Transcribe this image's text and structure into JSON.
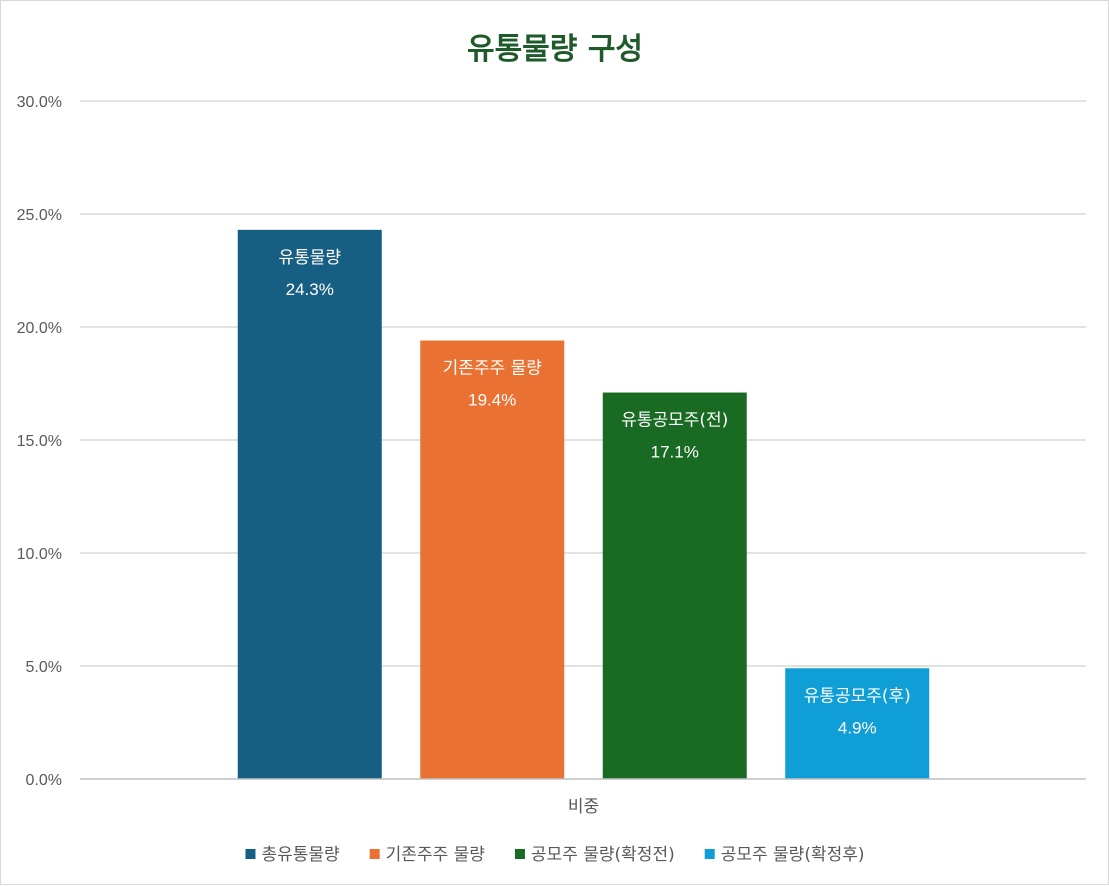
{
  "chart_data": {
    "type": "bar",
    "title": "유통물량 구성",
    "categories": [
      "비중"
    ],
    "series": [
      {
        "name": "총유통물량",
        "label": "유통물량",
        "value": 24.3,
        "value_label": "24.3%",
        "color": "#175f82"
      },
      {
        "name": "기존주주 물량",
        "label": "기존주주 물량",
        "value": 19.4,
        "value_label": "19.4%",
        "color": "#e97132"
      },
      {
        "name": "공모주 물량(확정전)",
        "label": "유통공모주(전)",
        "value": 17.1,
        "value_label": "17.1%",
        "color": "#196b24"
      },
      {
        "name": "공모주 물량(확정후)",
        "label": "유통공모주(후)",
        "value": 4.9,
        "value_label": "4.9%",
        "color": "#0f9ed5"
      }
    ],
    "ylim": [
      0,
      30
    ],
    "yticks": [
      {
        "value": 0,
        "label": "0.0%"
      },
      {
        "value": 5,
        "label": "5.0%"
      },
      {
        "value": 10,
        "label": "10.0%"
      },
      {
        "value": 15,
        "label": "15.0%"
      },
      {
        "value": 20,
        "label": "20.0%"
      },
      {
        "value": 25,
        "label": "25.0%"
      },
      {
        "value": 30,
        "label": "30.0%"
      }
    ],
    "grid": true,
    "legend_position": "bottom",
    "title_color": "#1f5a2b"
  }
}
